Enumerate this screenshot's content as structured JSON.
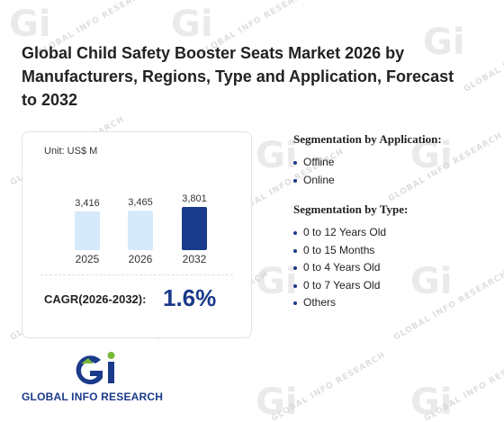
{
  "title": "Global Child Safety Booster Seats Market 2026 by Manufacturers, Regions, Type and Application, Forecast to 2032",
  "watermark_text": "GLOBAL INFO RESEARCH",
  "colors": {
    "bar_past": "#d6e9fb",
    "bar_forecast": "#1a3a8a",
    "accent": "#1a3a8a",
    "logo_green": "#7ab83a"
  },
  "chart_data": {
    "type": "bar",
    "unit_label": "Unit: US$ M",
    "categories": [
      "2025",
      "2026",
      "2032"
    ],
    "values": [
      3416,
      3465,
      3801
    ],
    "value_labels": [
      "3,416",
      "3,465",
      "3,801"
    ],
    "highlight_index": 2,
    "ylim": [
      0,
      3801
    ]
  },
  "cagr": {
    "label": "CAGR(2026-2032):",
    "value": "1.6%"
  },
  "segmentation_application": {
    "title": "Segmentation by Application:",
    "items": [
      "Offline",
      "Online"
    ]
  },
  "segmentation_type": {
    "title": "Segmentation by Type:",
    "items": [
      "0 to 12 Years Old",
      "0 to 15 Months",
      "0 to 4 Years Old",
      "0 to 7 Years Old",
      "Others"
    ]
  },
  "logo": {
    "mark": "Gi",
    "name": "GLOBAL INFO RESEARCH"
  }
}
